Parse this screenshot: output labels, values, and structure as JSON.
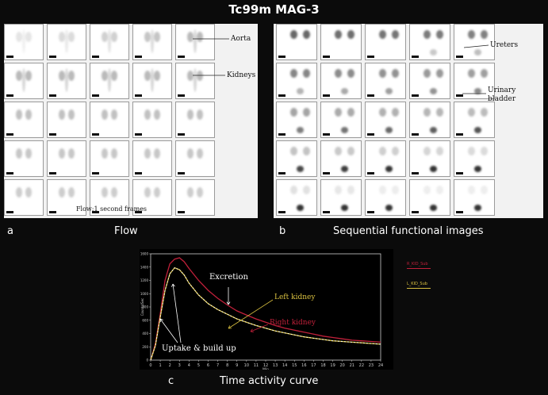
{
  "title": "Tc99m MAG-3",
  "panels": {
    "flow": {
      "letter": "a",
      "caption": "Flow",
      "labels": {
        "aorta": "Aorta",
        "kidneys": "Kidneys",
        "frames": "Flow:1 second frames"
      }
    },
    "sequential": {
      "letter": "b",
      "caption": "Sequential functional images",
      "labels": {
        "ureters": "Ureters",
        "bladder_line1": "Urinary",
        "bladder_line2": "bladder"
      }
    },
    "curve": {
      "letter": "c",
      "caption": "Time activity curve",
      "annotations": {
        "excretion": "Excretion",
        "left_kidney": "Left kidney",
        "right_kidney": "Right kidney",
        "uptake": "Uptake & build up"
      },
      "legend": [
        "R_KID_Sub",
        "L_KID_Sub"
      ],
      "colors": {
        "right": "#c0203a",
        "left": "#d9c040",
        "axes": "#cfcfcf"
      }
    }
  },
  "chart_data": {
    "type": "line",
    "xlabel": "Min",
    "ylabel": "Counts/Sec",
    "xlim": [
      0,
      24
    ],
    "ylim": [
      0,
      1600
    ],
    "x_ticks": [
      0,
      1,
      2,
      3,
      4,
      5,
      6,
      7,
      8,
      9,
      10,
      11,
      12,
      13,
      14,
      15,
      16,
      17,
      18,
      19,
      20,
      21,
      22,
      23,
      24
    ],
    "y_ticks": [
      0,
      200,
      400,
      600,
      800,
      1000,
      1200,
      1400,
      1600
    ],
    "series": [
      {
        "name": "R_KID_Sub",
        "x": [
          0,
          0.5,
          1,
          1.5,
          2,
          2.5,
          3,
          3.5,
          4,
          5,
          6,
          7,
          8,
          9,
          10,
          11,
          12,
          13,
          14,
          15,
          16,
          17,
          18,
          19,
          20,
          21,
          22,
          23,
          24
        ],
        "y": [
          0,
          250,
          700,
          1200,
          1450,
          1520,
          1540,
          1480,
          1380,
          1200,
          1050,
          930,
          830,
          740,
          680,
          620,
          570,
          520,
          480,
          450,
          420,
          390,
          360,
          340,
          320,
          300,
          290,
          280,
          270
        ]
      },
      {
        "name": "L_KID_Sub",
        "x": [
          0,
          0.5,
          1,
          1.5,
          2,
          2.5,
          3,
          3.5,
          4,
          5,
          6,
          7,
          8,
          9,
          10,
          11,
          12,
          13,
          14,
          15,
          16,
          17,
          18,
          19,
          20,
          21,
          22,
          23,
          24
        ],
        "y": [
          0,
          220,
          650,
          1050,
          1300,
          1390,
          1360,
          1280,
          1160,
          980,
          850,
          760,
          690,
          620,
          570,
          520,
          480,
          440,
          410,
          380,
          350,
          330,
          310,
          290,
          280,
          270,
          260,
          250,
          240
        ]
      }
    ]
  }
}
